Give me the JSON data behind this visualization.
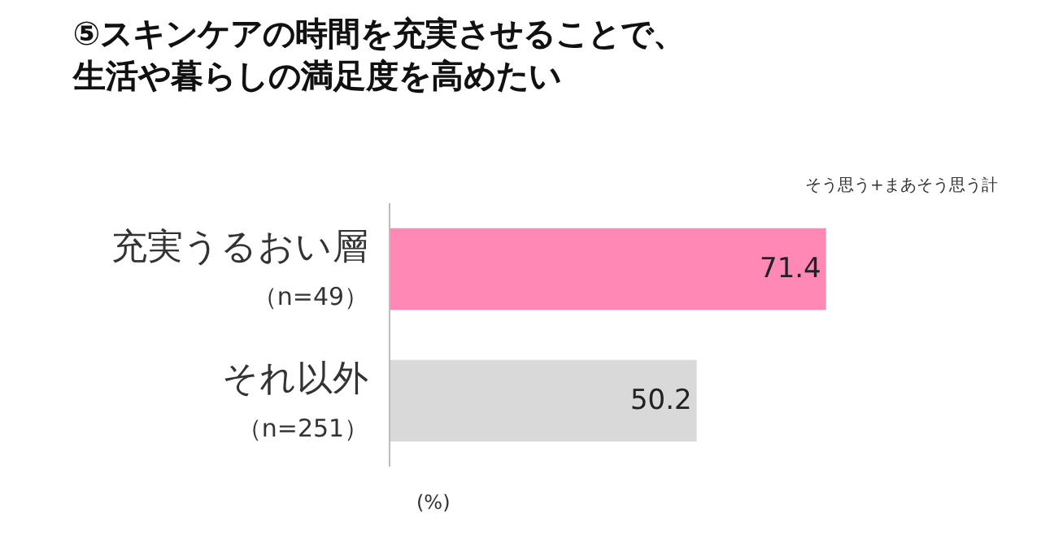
{
  "chart_data": {
    "type": "bar",
    "orientation": "horizontal",
    "title": "⑤スキンケアの時間を充実させることで、生活や暮らしの満足度を高めたい",
    "categories": [
      "充実うるおい層（n=49）",
      "それ以外（n=251）"
    ],
    "values": [
      71.4,
      50.2
    ],
    "colors": [
      "#ff88b4",
      "#d9d9d9"
    ],
    "data_labels": true,
    "tick_labels": "y",
    "annotations": [
      "そう思う+まあそう思う計",
      "(%)"
    ]
  }
}
